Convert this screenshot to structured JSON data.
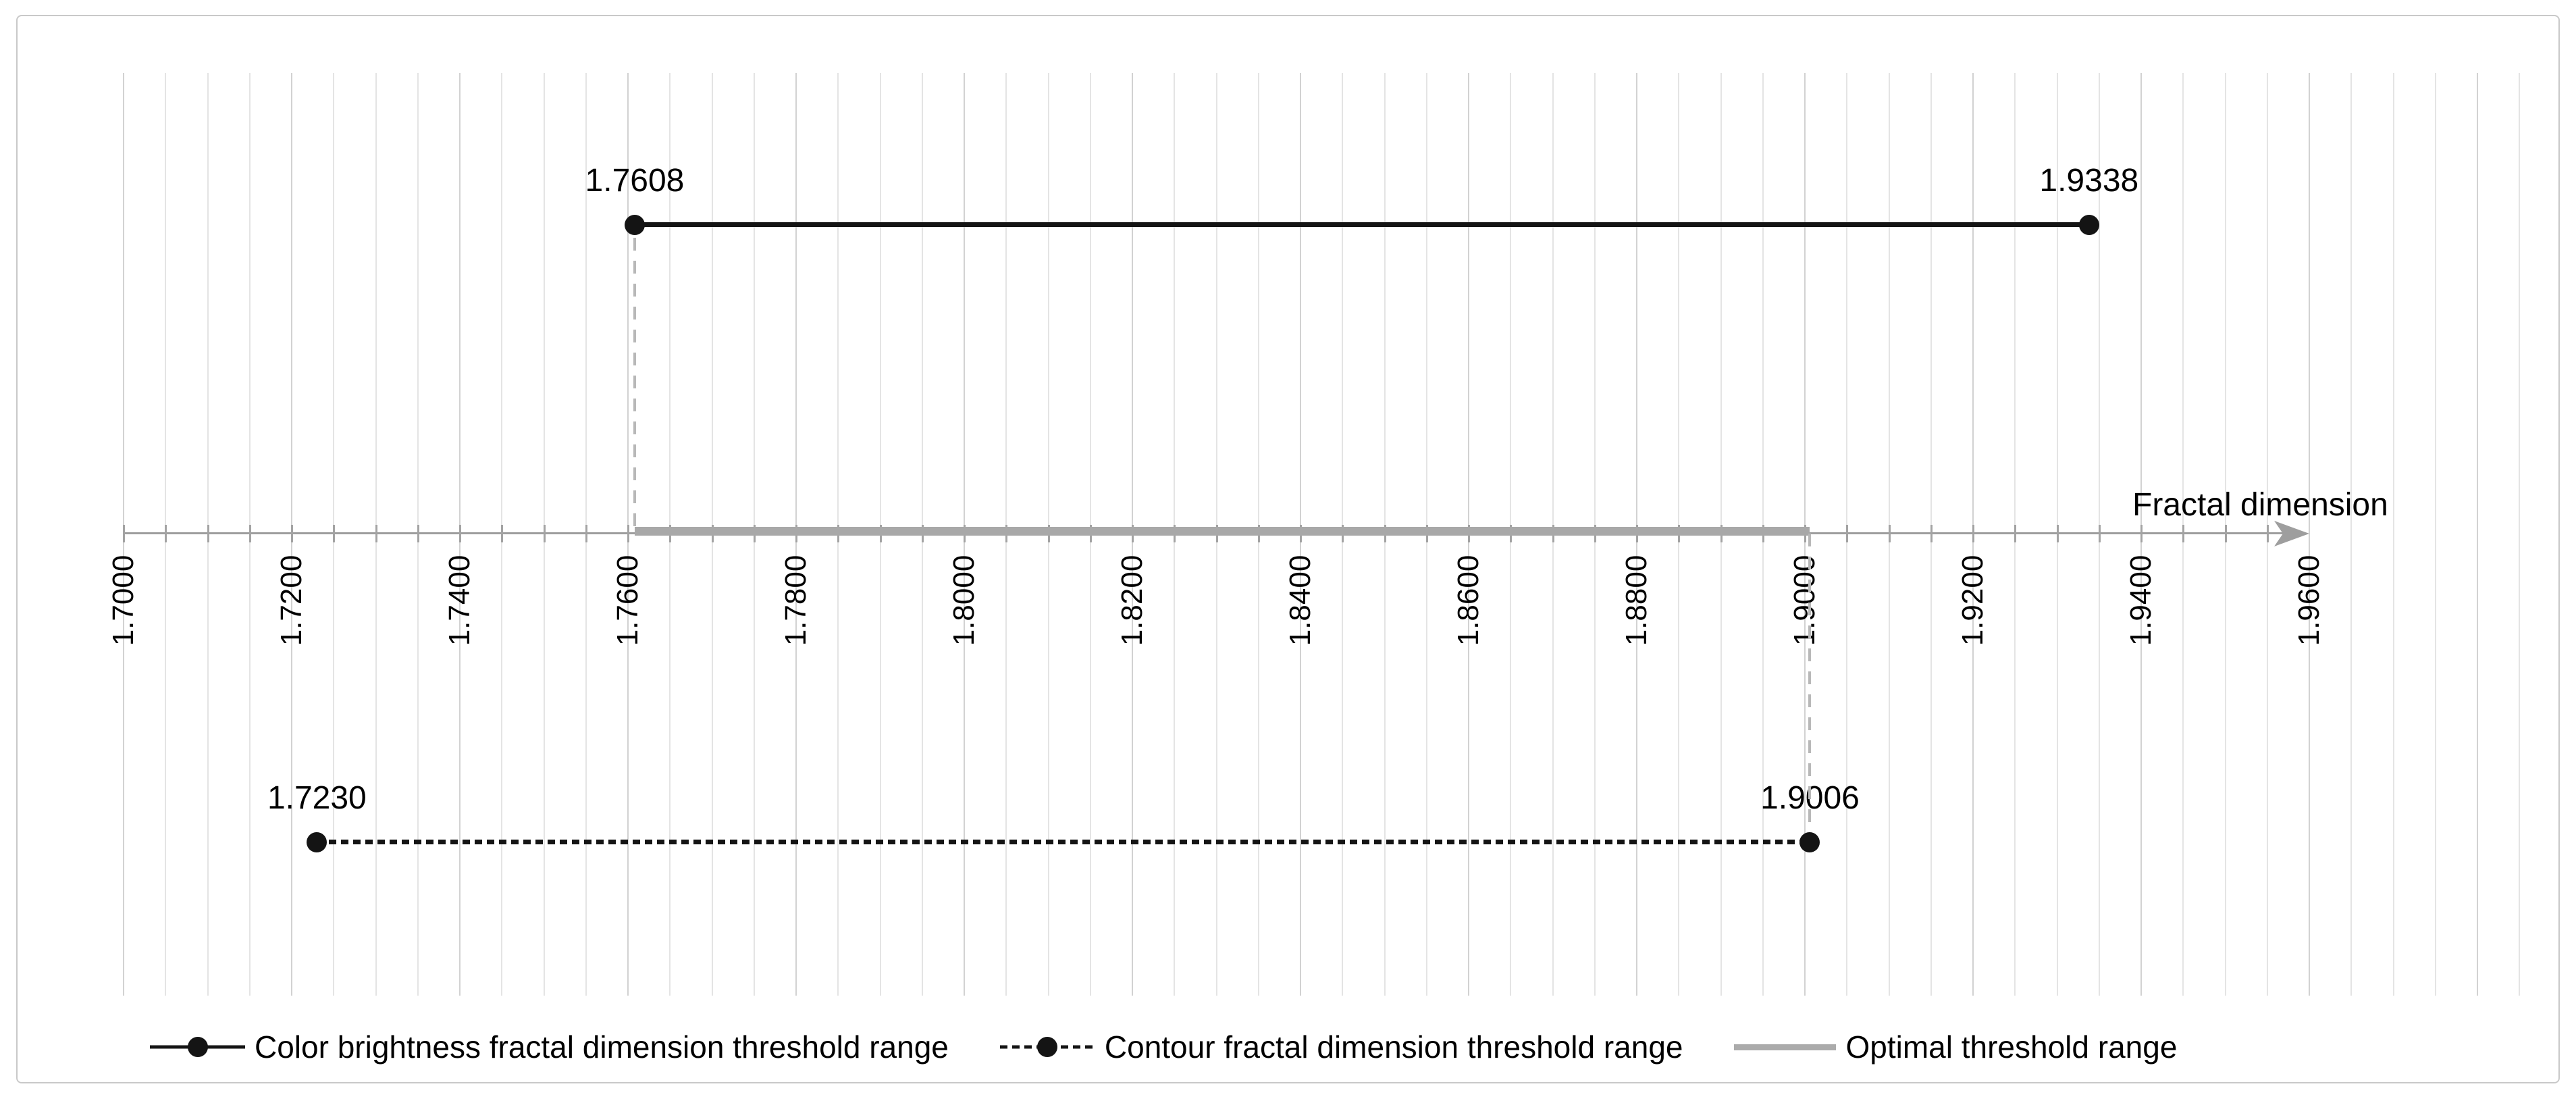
{
  "chart_data": {
    "type": "line",
    "subtype": "horizontal-range-intervals",
    "title": "",
    "xlabel": "Fractal dimension",
    "xlim": [
      1.7,
      1.96
    ],
    "x_major_tick": 0.02,
    "x_minor_tick": 0.005,
    "x_tick_labels": [
      "1.7000",
      "1.7200",
      "1.7400",
      "1.7600",
      "1.7800",
      "1.8000",
      "1.8200",
      "1.8400",
      "1.8600",
      "1.8800",
      "1.9000",
      "1.9200",
      "1.9400",
      "1.9600"
    ],
    "grid": "vertical",
    "legend_position": "bottom",
    "series": [
      {
        "name": "Color brightness fractal dimension threshold range",
        "start": 1.7608,
        "end": 1.9338,
        "point_labels": [
          "1.7608",
          "1.9338"
        ],
        "row": "above-axis",
        "line_style": "solid",
        "marker": "circle",
        "color": "#141414"
      },
      {
        "name": "Contour fractal dimension threshold range",
        "start": 1.723,
        "end": 1.9006,
        "point_labels": [
          "1.7230",
          "1.9006"
        ],
        "row": "below-axis",
        "line_style": "dashed",
        "marker": "circle",
        "color": "#141414"
      },
      {
        "name": "Optimal threshold range",
        "start": 1.7608,
        "end": 1.9006,
        "point_labels": [],
        "row": "on-axis",
        "line_style": "thick",
        "marker": "none",
        "color": "#a8a8a8"
      }
    ],
    "connectors": [
      {
        "value": 1.7608,
        "between": [
          "above-axis-line",
          "axis"
        ]
      },
      {
        "value": 1.9006,
        "between": [
          "axis",
          "below-axis-line"
        ]
      }
    ]
  },
  "axis": {
    "title": "Fractal dimension"
  },
  "legend": {
    "items": [
      {
        "label": "Color brightness fractal dimension threshold range",
        "swatch": "solid-line-with-dot"
      },
      {
        "label": "Contour fractal dimension threshold range",
        "swatch": "dashed-line-with-dot"
      },
      {
        "label": "Optimal threshold range",
        "swatch": "thick-gray-line"
      }
    ]
  },
  "colors": {
    "background": "#ffffff",
    "figure_border": "#c9c9c9",
    "grid_minor": "#e4e4e4",
    "grid_major": "#d2d2d2",
    "axis": "#9e9e9e",
    "tick": "#a3a3a3",
    "connector": "#b8b8b8",
    "optimal_bar": "#a8a8a8",
    "series_black": "#141414",
    "text": "#000000"
  }
}
